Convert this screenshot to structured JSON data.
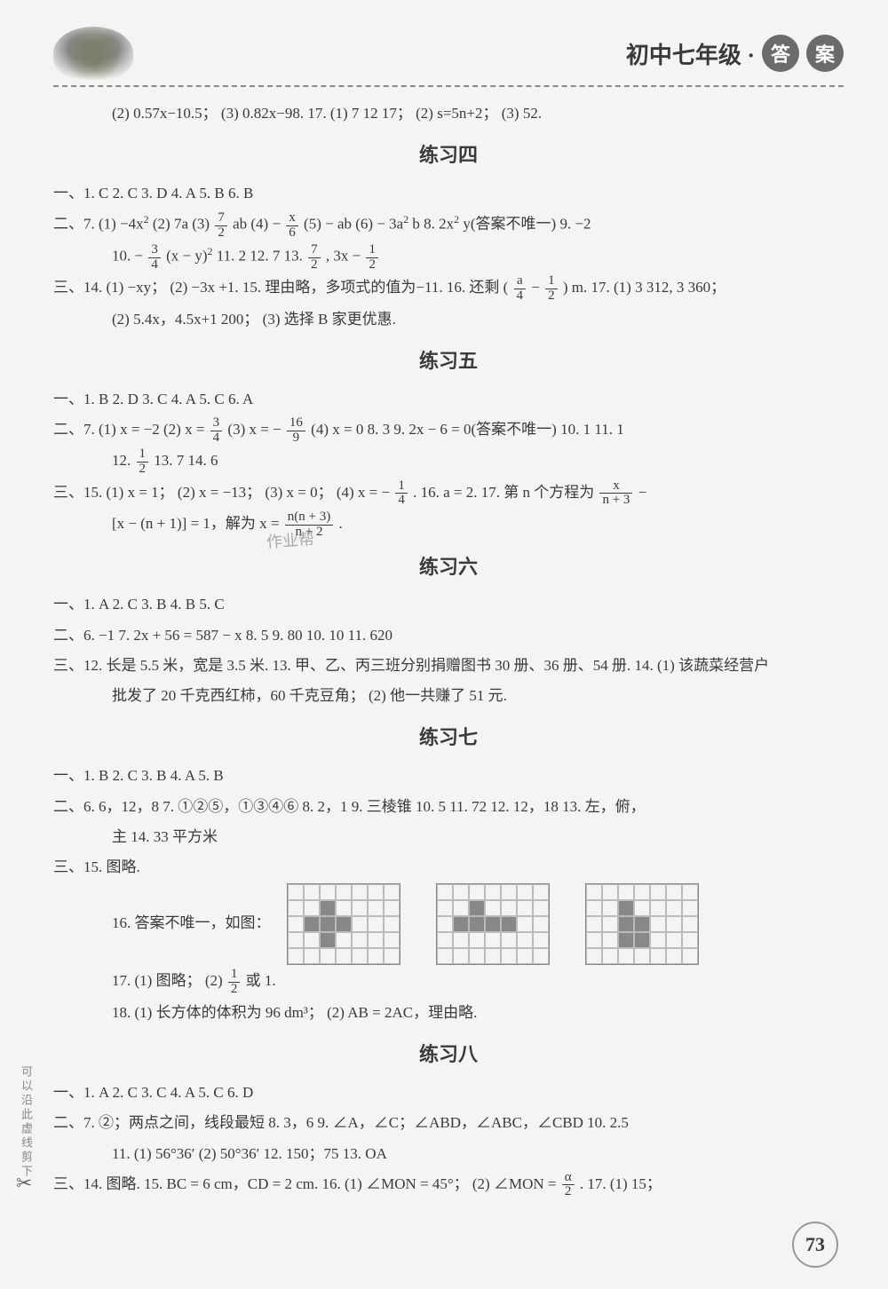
{
  "header": {
    "right_title": "初中七年级 ·",
    "badge1": "答",
    "badge2": "案"
  },
  "top_frag": "(2) 0.57x−10.5；  (3) 0.82x−98.   17. (1) 7   12   17；  (2) s=5n+2；  (3) 52.",
  "ex4": {
    "title": "练习四",
    "l1": "一、1. C   2. C   3. D   4. A   5. B   6. B",
    "l2a": "二、7. (1) −4x",
    "l2b": "   (2) 7a   (3) ",
    "l2c": "ab   (4) −",
    "l2d": "   (5) − ab   (6) − 3a",
    "l2e": "b   8. 2x",
    "l2f": "y(答案不唯一)   9. −2",
    "frac_7_2_n": "7",
    "frac_7_2_d": "2",
    "frac_x_6_n": "x",
    "frac_x_6_d": "6",
    "l3a": "10. −",
    "l3b": " (x − y)",
    "l3c": "     11. 2   12. 7   13. ",
    "l3d": " , 3x − ",
    "frac_3_4_n": "3",
    "frac_3_4_d": "4",
    "frac_7_2b_n": "7",
    "frac_7_2b_d": "2",
    "frac_1_2_n": "1",
    "frac_1_2_d": "2",
    "l4a": "三、14. (1) −xy；  (2) −3x +1.   15. 理由略，多项式的值为−11.   16. 还剩 (",
    "l4b": " − ",
    "l4c": ") m.   17. (1) 3 312, 3 360；",
    "frac_a_4_n": "a",
    "frac_a_4_d": "4",
    "frac_1_2b_n": "1",
    "frac_1_2b_d": "2",
    "l5": "(2) 5.4x，4.5x+1 200；  (3) 选择 B 家更优惠."
  },
  "ex5": {
    "title": "练习五",
    "l1": "一、1. B   2. D   3. C   4. A   5. C   6. A",
    "l2a": "二、7. (1) x = −2   (2) x = ",
    "l2b": "   (3) x = −",
    "l2c": "   (4) x = 0   8. 3   9. 2x − 6 = 0(答案不唯一)   10. 1   11. 1",
    "frac_3_4b_n": "3",
    "frac_3_4b_d": "4",
    "frac_16_9_n": "16",
    "frac_16_9_d": "9",
    "l3a": "12. ",
    "l3b": "   13. 7   14. 6",
    "frac_1_2c_n": "1",
    "frac_1_2c_d": "2",
    "l4a": "三、15. (1) x = 1；  (2) x = −13；  (3) x = 0；  (4) x = −",
    "l4b": ".   16. a = 2.   17. 第 n 个方程为 ",
    "l4c": " −",
    "frac_1_4_n": "1",
    "frac_1_4_d": "4",
    "frac_x_n3_n": "x",
    "frac_x_n3_d": "n + 3",
    "l5a": "[x − (n + 1)] = 1，解为 x = ",
    "l5b": ".",
    "frac_nn3_n": "n(n + 3)",
    "frac_nn3_d": "n + 2"
  },
  "ex6": {
    "title": "练习六",
    "l1": "一、1. A   2. C   3. B   4. B   5. C",
    "l2": "二、6. −1   7. 2x + 56 = 587 − x   8. 5   9. 80   10. 10   11. 620",
    "l3": "三、12. 长是 5.5 米，宽是 3.5 米.   13. 甲、乙、丙三班分别捐赠图书 30 册、36 册、54 册.   14. (1) 该蔬菜经营户",
    "l4": "批发了 20 千克西红柿，60 千克豆角；  (2) 他一共赚了 51 元."
  },
  "ex7": {
    "title": "练习七",
    "l1": "一、1. B   2. C   3. B   4. A   5. B",
    "l2": "二、6. 6，12，8   7. ①②⑤，①③④⑥   8. 2，1   9. 三棱锥   10. 5   11. 72   12. 12，18   13. 左，俯，",
    "l3": "主   14. 33 平方米",
    "l4": "三、15. 图略.",
    "l5": "16. 答案不唯一，如图：",
    "l6a": "17. (1) 图略；  (2) ",
    "l6b": "或 1.",
    "frac_1_2d_n": "1",
    "frac_1_2d_d": "2",
    "l7": "18. (1) 长方体的体积为 96 dm³；  (2) AB = 2AC，理由略."
  },
  "ex8": {
    "title": "练习八",
    "l1": "一、1. A   2. C   3. C   4. A   5. C   6. D",
    "l2": "二、7. ②；两点之间，线段最短   8. 3，6   9. ∠A，∠C；∠ABD，∠ABC，∠CBD   10. 2.5",
    "l3": "11. (1) 56°36′   (2) 50°36′   12. 150；75   13. OA",
    "l4a": "三、14. 图略.   15. BC = 6 cm，CD = 2 cm.   16. (1) ∠MON = 45°；  (2) ∠MON = ",
    "l4b": ".   17. (1) 15；",
    "frac_a_2_n": "α",
    "frac_a_2_d": "2"
  },
  "grids": {
    "rows": 5,
    "cols": 7,
    "cell": 18,
    "g1": [
      [
        0,
        0,
        0,
        0,
        0,
        0,
        0
      ],
      [
        0,
        0,
        1,
        0,
        0,
        0,
        0
      ],
      [
        0,
        1,
        1,
        1,
        0,
        0,
        0
      ],
      [
        0,
        0,
        1,
        0,
        0,
        0,
        0
      ],
      [
        0,
        0,
        0,
        0,
        0,
        0,
        0
      ]
    ],
    "g2": [
      [
        0,
        0,
        0,
        0,
        0,
        0,
        0
      ],
      [
        0,
        0,
        1,
        0,
        0,
        0,
        0
      ],
      [
        0,
        1,
        1,
        1,
        1,
        0,
        0
      ],
      [
        0,
        0,
        0,
        0,
        0,
        0,
        0
      ],
      [
        0,
        0,
        0,
        0,
        0,
        0,
        0
      ]
    ],
    "g3": [
      [
        0,
        0,
        0,
        0,
        0,
        0,
        0
      ],
      [
        0,
        0,
        1,
        0,
        0,
        0,
        0
      ],
      [
        0,
        0,
        1,
        1,
        0,
        0,
        0
      ],
      [
        0,
        0,
        1,
        1,
        0,
        0,
        0
      ],
      [
        0,
        0,
        0,
        0,
        0,
        0,
        0
      ]
    ]
  },
  "watermark": "作业帮",
  "side_note": "可以沿此虚线剪下",
  "scissors": "✂",
  "page_number": "73"
}
